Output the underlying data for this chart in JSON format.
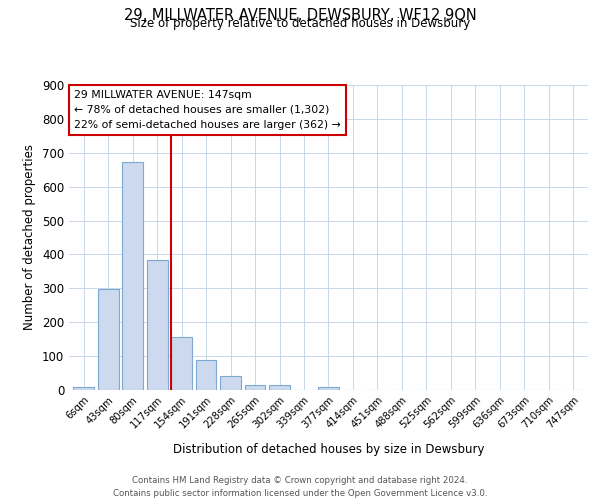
{
  "title_line1": "29, MILLWATER AVENUE, DEWSBURY, WF12 9QN",
  "title_line2": "Size of property relative to detached houses in Dewsbury",
  "xlabel": "Distribution of detached houses by size in Dewsbury",
  "ylabel": "Number of detached properties",
  "bar_labels": [
    "6sqm",
    "43sqm",
    "80sqm",
    "117sqm",
    "154sqm",
    "191sqm",
    "228sqm",
    "265sqm",
    "302sqm",
    "339sqm",
    "377sqm",
    "414sqm",
    "451sqm",
    "488sqm",
    "525sqm",
    "562sqm",
    "599sqm",
    "636sqm",
    "673sqm",
    "710sqm",
    "747sqm"
  ],
  "bar_values": [
    8,
    297,
    672,
    385,
    155,
    88,
    40,
    15,
    15,
    0,
    10,
    0,
    0,
    0,
    0,
    0,
    0,
    0,
    0,
    0,
    0
  ],
  "bar_color": "#ccd9ee",
  "bar_edge_color": "#7fa8d0",
  "ylim": [
    0,
    900
  ],
  "yticks": [
    0,
    100,
    200,
    300,
    400,
    500,
    600,
    700,
    800,
    900
  ],
  "vline_color": "#cc0000",
  "annotation_title": "29 MILLWATER AVENUE: 147sqm",
  "annotation_line1": "← 78% of detached houses are smaller (1,302)",
  "annotation_line2": "22% of semi-detached houses are larger (362) →",
  "annotation_box_color": "#cc0000",
  "footer_line1": "Contains HM Land Registry data © Crown copyright and database right 2024.",
  "footer_line2": "Contains public sector information licensed under the Open Government Licence v3.0.",
  "background_color": "#ffffff",
  "grid_color": "#c8d8ea"
}
